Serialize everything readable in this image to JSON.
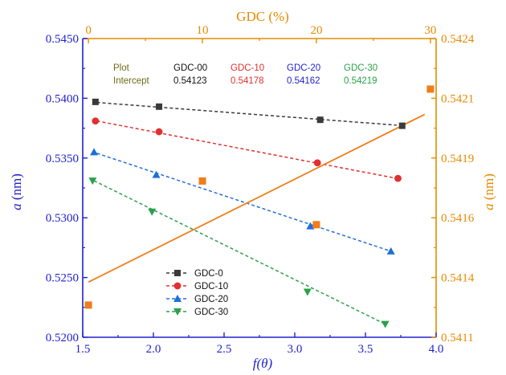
{
  "chart_data": {
    "type": "scatter",
    "x_axis": {
      "label": "f(θ)",
      "range": [
        1.5,
        4.0
      ],
      "ticks": [
        "1.5",
        "2.0",
        "2.5",
        "3.0",
        "3.5",
        "4.0"
      ],
      "color": "#2222cc"
    },
    "y_axis": {
      "label": "a (nm)",
      "range": [
        0.52,
        0.545
      ],
      "ticks": [
        "0.5200",
        "0.5250",
        "0.5300",
        "0.5350",
        "0.5400",
        "0.5450"
      ],
      "color": "#2222cc"
    },
    "top_axis": {
      "label": "GDC (%)",
      "range": [
        -0.5,
        30.5
      ],
      "ticks": [
        "0",
        "10",
        "20",
        "30"
      ],
      "color": "#e68a00"
    },
    "right_axis": {
      "label": "a (nm)",
      "range": [
        0.5411,
        0.5424
      ],
      "ticks": [
        "0.5411",
        "0.5414",
        "0.5416",
        "0.5419",
        "0.5421",
        "0.5424"
      ],
      "color": "#e68a00"
    },
    "series": [
      {
        "name": "GDC-0",
        "color": "#3a3a3a",
        "marker": "square",
        "x": [
          1.59,
          2.04,
          3.18,
          3.76
        ],
        "y": [
          0.5397,
          0.5393,
          0.5382,
          0.5377
        ],
        "fit": {
          "x": [
            1.6,
            3.72
          ],
          "y": [
            0.53965,
            0.53775
          ]
        }
      },
      {
        "name": "GDC-10",
        "color": "#e03030",
        "marker": "circle",
        "x": [
          1.59,
          2.04,
          3.16,
          3.73
        ],
        "y": [
          0.5381,
          0.5372,
          0.5346,
          0.5333
        ],
        "fit": {
          "x": [
            1.6,
            3.72
          ],
          "y": [
            0.5381,
            0.5333
          ]
        }
      },
      {
        "name": "GDC-20",
        "color": "#1e6fd9",
        "marker": "triangle-up",
        "x": [
          1.58,
          2.02,
          3.11,
          3.68
        ],
        "y": [
          0.5355,
          0.5336,
          0.5293,
          0.5272
        ],
        "fit": {
          "x": [
            1.6,
            3.68
          ],
          "y": [
            0.5354,
            0.5272
          ]
        }
      },
      {
        "name": "GDC-30",
        "color": "#2aa14a",
        "marker": "triangle-down",
        "x": [
          1.57,
          1.99,
          3.09,
          3.64
        ],
        "y": [
          0.5331,
          0.5305,
          0.5238,
          0.5211
        ],
        "fit": {
          "x": [
            1.58,
            3.64
          ],
          "y": [
            0.5331,
            0.5211
          ]
        }
      }
    ],
    "orange_series": {
      "color": "#f07d1a",
      "marker": "square",
      "gdc_pct": [
        0,
        10,
        20,
        30
      ],
      "a_nm": [
        0.54124,
        0.54178,
        0.54159,
        0.54218
      ],
      "fit": {
        "gdc_pct": [
          0,
          29.5
        ],
        "a_nm": [
          0.54134,
          0.54207
        ]
      }
    },
    "intercept_table": {
      "header_label": "Plot",
      "row_label": "Intercept",
      "label_color": "#6b6b16",
      "columns": [
        {
          "name": "GDC-00",
          "value": "0.54123",
          "color": "#111111"
        },
        {
          "name": "GDC-10",
          "value": "0.54178",
          "color": "#e03030"
        },
        {
          "name": "GDC-20",
          "value": "0.54162",
          "color": "#2222cc"
        },
        {
          "name": "GDC-30",
          "value": "0.54219",
          "color": "#2aa14a"
        }
      ]
    },
    "legend": {
      "placement": "bottom-center",
      "entries": [
        "GDC-0",
        "GDC-10",
        "GDC-20",
        "GDC-30"
      ]
    },
    "grid": false
  }
}
